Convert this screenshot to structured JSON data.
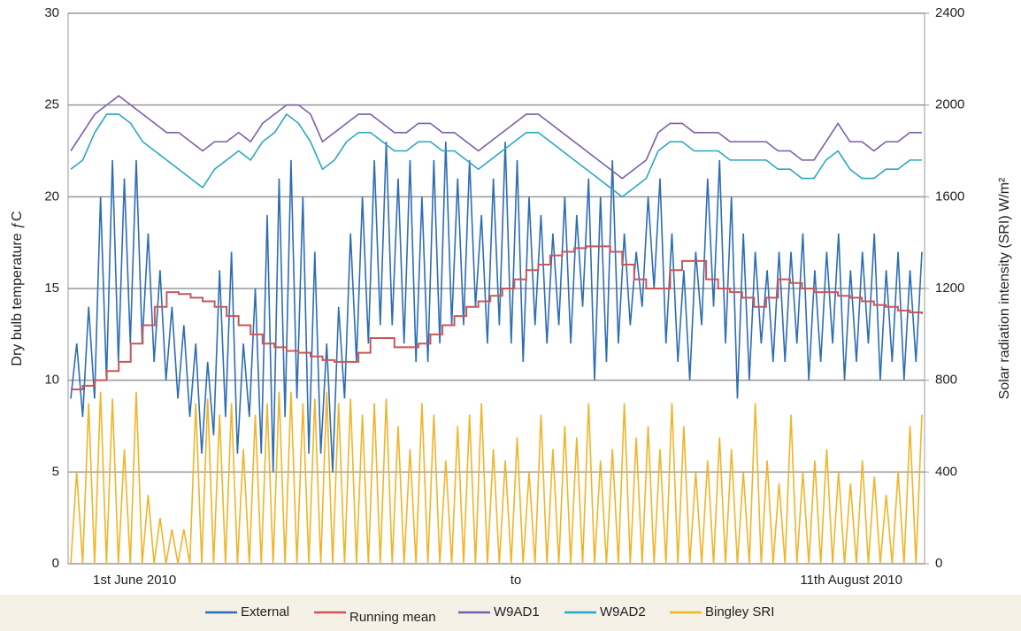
{
  "chart_data": {
    "type": "line",
    "y_label": "Dry bulb temperature ƒC",
    "y2_label": "Solar radiation intensity (SRI) W/m²",
    "x_axis_labels": [
      "1st June 2010",
      "to",
      "11th August 2010"
    ],
    "ylim": [
      0,
      30
    ],
    "yticks": [
      0,
      5,
      10,
      15,
      20,
      25,
      30
    ],
    "y2lim": [
      0,
      2400
    ],
    "y2ticks": [
      0,
      400,
      800,
      1200,
      1600,
      2000,
      2400
    ],
    "grid": true,
    "legend": "bottom",
    "series": [
      {
        "name": "Bingley SRI",
        "color": "#f0b428",
        "axis": "y2",
        "values": [
          0,
          400,
          0,
          700,
          0,
          750,
          0,
          720,
          0,
          500,
          0,
          750,
          0,
          300,
          0,
          200,
          0,
          150,
          0,
          150,
          0,
          700,
          0,
          720,
          0,
          650,
          0,
          700,
          0,
          500,
          0,
          650,
          0,
          700,
          0,
          750,
          0,
          750,
          0,
          700,
          0,
          720,
          0,
          750,
          0,
          700,
          0,
          720,
          0,
          650,
          0,
          700,
          0,
          720,
          0,
          600,
          0,
          500,
          0,
          700,
          0,
          650,
          0,
          450,
          0,
          600,
          0,
          650,
          0,
          700,
          0,
          500,
          0,
          450,
          0,
          550,
          0,
          400,
          0,
          650,
          0,
          500,
          0,
          600,
          0,
          550,
          0,
          700,
          0,
          450,
          0,
          500,
          0,
          700,
          0,
          550,
          0,
          600,
          0,
          500,
          0,
          700,
          0,
          600,
          0,
          400,
          0,
          450,
          0,
          550,
          0,
          500,
          0,
          400,
          0,
          700,
          0,
          450,
          0,
          350,
          0,
          650,
          0,
          400,
          0,
          450,
          0,
          500,
          0,
          400,
          0,
          350,
          0,
          450,
          0,
          380,
          0,
          300,
          0,
          400,
          0,
          600,
          0,
          650
        ]
      },
      {
        "name": "External",
        "color": "#2e6db4",
        "values": [
          9,
          12,
          8,
          14,
          9,
          20,
          10,
          22,
          11,
          21,
          12,
          22,
          12,
          18,
          11,
          16,
          10,
          14,
          9,
          13,
          8,
          12,
          6,
          11,
          7,
          16,
          8,
          17,
          6,
          12,
          8,
          15,
          6,
          19,
          5,
          21,
          8,
          22,
          9,
          20,
          6,
          17,
          6,
          12,
          5,
          14,
          9,
          18,
          11,
          20,
          12,
          22,
          13,
          23,
          13,
          21,
          12,
          22,
          11,
          20,
          11,
          22,
          12,
          23,
          13,
          21,
          13,
          22,
          14,
          19,
          12,
          21,
          13,
          23,
          12,
          22,
          11,
          20,
          13,
          19,
          12,
          18,
          13,
          20,
          12,
          19,
          14,
          21,
          10,
          20,
          11,
          22,
          12,
          18,
          13,
          17,
          14,
          20,
          15,
          21,
          12,
          18,
          11,
          16,
          10,
          17,
          13,
          21,
          14,
          22,
          12,
          20,
          9,
          18,
          10,
          17,
          12,
          16,
          11,
          17,
          11,
          17,
          12,
          18,
          10,
          16,
          11,
          17,
          12,
          18,
          10,
          16,
          11,
          17,
          12,
          18,
          10,
          16,
          11,
          17,
          10,
          16,
          11,
          17
        ]
      },
      {
        "name": "Running mean",
        "color": "#c8575a",
        "step": true,
        "values": [
          9.5,
          9.7,
          10,
          10.5,
          11,
          12,
          13,
          14,
          14.8,
          14.7,
          14.5,
          14.3,
          14,
          13.5,
          13,
          12.5,
          12,
          11.8,
          11.6,
          11.5,
          11.3,
          11.1,
          11,
          11,
          11.5,
          12.3,
          12.3,
          11.8,
          11.8,
          12,
          12.5,
          13,
          13.5,
          14,
          14.3,
          14.6,
          15,
          15.5,
          16,
          16.3,
          16.8,
          17,
          17.2,
          17.3,
          17.3,
          17,
          16.3,
          15.5,
          15,
          15,
          16,
          16.5,
          16.5,
          15.5,
          15,
          14.8,
          14.5,
          14,
          14.5,
          15.5,
          15.3,
          15,
          14.8,
          14.8,
          14.6,
          14.5,
          14.3,
          14.1,
          14,
          13.8,
          13.7,
          13.6
        ]
      },
      {
        "name": "W9AD1",
        "color": "#7b5ea7",
        "values": [
          22.5,
          23.5,
          24.5,
          25,
          25.5,
          25,
          24.5,
          24,
          23.5,
          23.5,
          23,
          22.5,
          23,
          23,
          23.5,
          23,
          24,
          24.5,
          25,
          25,
          24.5,
          23,
          23.5,
          24,
          24.5,
          24.5,
          24,
          23.5,
          23.5,
          24,
          24,
          23.5,
          23.5,
          23,
          22.5,
          23,
          23.5,
          24,
          24.5,
          24.5,
          24,
          23.5,
          23,
          22.5,
          22,
          21.5,
          21,
          21.5,
          22,
          23.5,
          24,
          24,
          23.5,
          23.5,
          23.5,
          23,
          23,
          23,
          23,
          22.5,
          22.5,
          22,
          22,
          23,
          24,
          23,
          23,
          22.5,
          23,
          23,
          23.5,
          23.5
        ]
      },
      {
        "name": "W9AD2",
        "color": "#2aa7c0",
        "values": [
          21.5,
          22,
          23.5,
          24.5,
          24.5,
          24,
          23,
          22.5,
          22,
          21.5,
          21,
          20.5,
          21.5,
          22,
          22.5,
          22,
          23,
          23.5,
          24.5,
          24,
          23,
          21.5,
          22,
          23,
          23.5,
          23.5,
          23,
          22.5,
          22.5,
          23,
          23,
          22.5,
          22.5,
          22,
          21.5,
          22,
          22.5,
          23,
          23.5,
          23.5,
          23,
          22.5,
          22,
          21.5,
          21,
          20.5,
          20,
          20.5,
          21,
          22.5,
          23,
          23,
          22.5,
          22.5,
          22.5,
          22,
          22,
          22,
          22,
          21.5,
          21.5,
          21,
          21,
          22,
          22.5,
          21.5,
          21,
          21,
          21.5,
          21.5,
          22,
          22
        ]
      }
    ],
    "legend_order": [
      1,
      2,
      3,
      4,
      0
    ]
  }
}
